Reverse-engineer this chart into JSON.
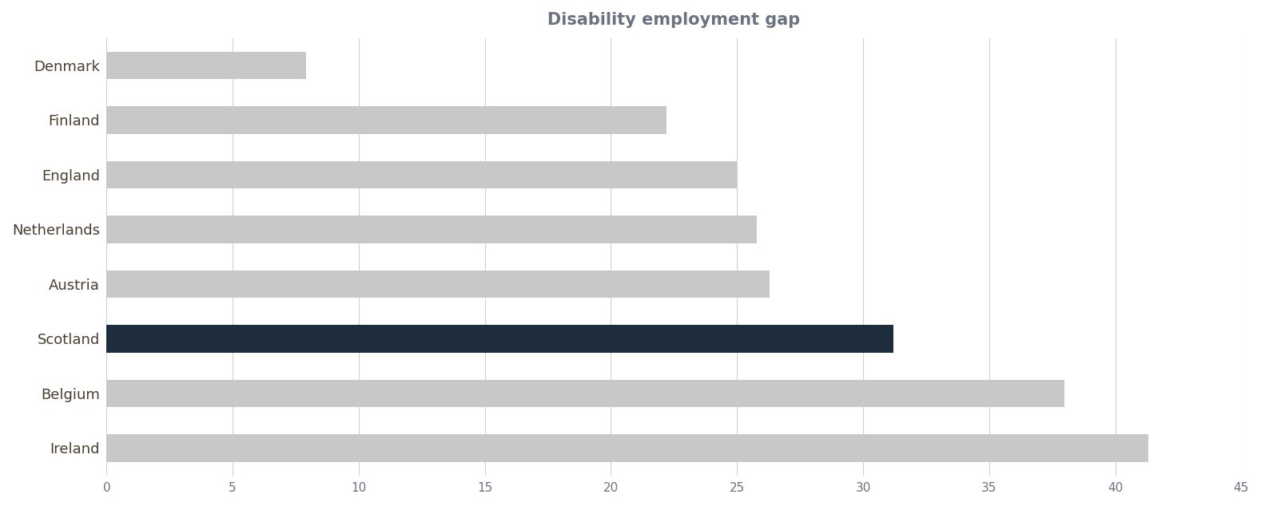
{
  "title": "Disability employment gap",
  "categories": [
    "Denmark",
    "Finland",
    "England",
    "Netherlands",
    "Austria",
    "Scotland",
    "Belgium",
    "Ireland"
  ],
  "values": [
    7.9,
    22.2,
    25.0,
    25.8,
    26.3,
    31.2,
    38.0,
    41.3
  ],
  "bar_colors": [
    "#c8c8c8",
    "#c8c8c8",
    "#c8c8c8",
    "#c8c8c8",
    "#c8c8c8",
    "#1e2d3b",
    "#c8c8c8",
    "#c8c8c8"
  ],
  "xlim": [
    0,
    45
  ],
  "xticks": [
    0,
    5,
    10,
    15,
    20,
    25,
    30,
    35,
    40,
    45
  ],
  "title_fontsize": 15,
  "title_color": "#6b7280",
  "label_color": "#4a3d2e",
  "tick_color": "#6b7280",
  "background_color": "#ffffff",
  "grid_color": "#d0d0d0",
  "bar_height": 0.5,
  "figwidth": 15.78,
  "figheight": 6.34,
  "dpi": 100
}
